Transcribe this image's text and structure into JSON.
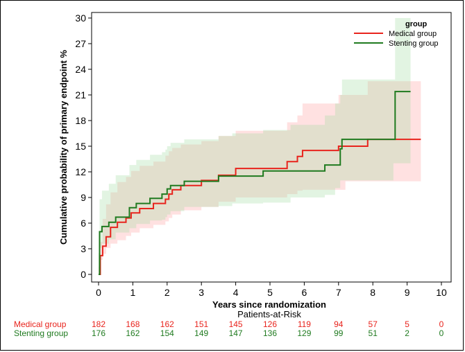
{
  "chart_data": {
    "type": "line",
    "subtype": "kaplan-meier cumulative incidence step plot",
    "xlabel": "Years since randomization",
    "ylabel": "Cumulative probability of primary endpoint %",
    "xlim": [
      0,
      10
    ],
    "ylim": [
      0,
      30
    ],
    "x_ticks": [
      0,
      1,
      2,
      3,
      4,
      5,
      6,
      7,
      8,
      9,
      10
    ],
    "y_ticks": [
      0,
      3,
      6,
      9,
      12,
      15,
      18,
      21,
      24,
      27,
      30
    ],
    "legend": {
      "title": "group",
      "position": "top-right"
    },
    "series": [
      {
        "name": "Medical group",
        "color": "#e8231c",
        "band_color": "#ff9a9a",
        "x": [
          0,
          0.05,
          0.12,
          0.22,
          0.35,
          0.55,
          0.8,
          0.95,
          1.2,
          1.6,
          1.95,
          2.05,
          2.15,
          2.4,
          3.0,
          3.5,
          4.0,
          5.5,
          5.8,
          5.95,
          7.0,
          7.2,
          7.85,
          9.4
        ],
        "y": [
          0,
          2.2,
          3.3,
          4.4,
          5.5,
          6.1,
          6.6,
          7.2,
          7.7,
          8.3,
          8.8,
          9.4,
          9.9,
          10.4,
          11.0,
          11.6,
          12.4,
          13.2,
          13.8,
          14.5,
          15.0,
          15.0,
          15.8,
          15.8
        ],
        "ci_upper": [
          0,
          3.8,
          6.5,
          8.2,
          9.6,
          10.8,
          11.4,
          12.1,
          12.7,
          13.2,
          13.9,
          14.4,
          14.8,
          15.2,
          15.6,
          16.2,
          16.8,
          17.8,
          18.6,
          20.0,
          21.0,
          21.0,
          22.6,
          22.6
        ],
        "ci_lower": [
          0,
          0.9,
          1.7,
          2.4,
          3.1,
          3.6,
          4.0,
          4.5,
          4.9,
          5.4,
          5.8,
          6.2,
          6.6,
          7.0,
          7.5,
          7.9,
          8.5,
          9.0,
          9.4,
          9.8,
          9.9,
          9.9,
          10.9,
          10.9
        ]
      },
      {
        "name": "Stenting group",
        "color": "#1f7a1f",
        "band_color": "#9ed99e",
        "x": [
          0,
          0.03,
          0.1,
          0.3,
          0.5,
          0.9,
          1.1,
          1.5,
          1.85,
          1.95,
          2.0,
          2.1,
          2.5,
          3.5,
          3.9,
          4.8,
          5.6,
          6.6,
          6.9,
          7.05,
          7.1,
          8.6,
          8.65,
          9.1
        ],
        "y": [
          0,
          5.0,
          5.6,
          6.1,
          6.7,
          7.8,
          8.3,
          8.9,
          9.4,
          9.4,
          10.0,
          10.4,
          10.9,
          11.5,
          11.5,
          12.1,
          12.1,
          12.8,
          12.8,
          14.7,
          15.8,
          15.8,
          21.4,
          21.4
        ],
        "ci_upper": [
          0,
          8.8,
          9.8,
          10.6,
          11.6,
          12.8,
          13.4,
          14.0,
          14.3,
          14.6,
          15.0,
          15.4,
          15.8,
          16.2,
          16.5,
          16.9,
          17.5,
          18.6,
          20.0,
          21.0,
          22.8,
          22.8,
          30.0,
          30.0
        ],
        "ci_lower": [
          0,
          2.5,
          3.1,
          3.6,
          4.1,
          4.9,
          5.4,
          5.9,
          6.3,
          6.4,
          6.7,
          7.0,
          7.4,
          7.9,
          8.0,
          8.3,
          8.4,
          9.0,
          9.3,
          10.1,
          11.0,
          11.0,
          13.0,
          13.0
        ]
      }
    ]
  },
  "risk_table": {
    "title": "Patients-at-Risk",
    "rows": [
      {
        "label": "Medical group",
        "color": "#e8231c",
        "counts": [
          "182",
          "168",
          "162",
          "151",
          "145",
          "126",
          "119",
          "94",
          "57",
          "5",
          "0"
        ]
      },
      {
        "label": "Stenting group",
        "color": "#1f7a1f",
        "counts": [
          "176",
          "162",
          "154",
          "149",
          "147",
          "136",
          "129",
          "99",
          "51",
          "2",
          "0"
        ]
      }
    ]
  }
}
